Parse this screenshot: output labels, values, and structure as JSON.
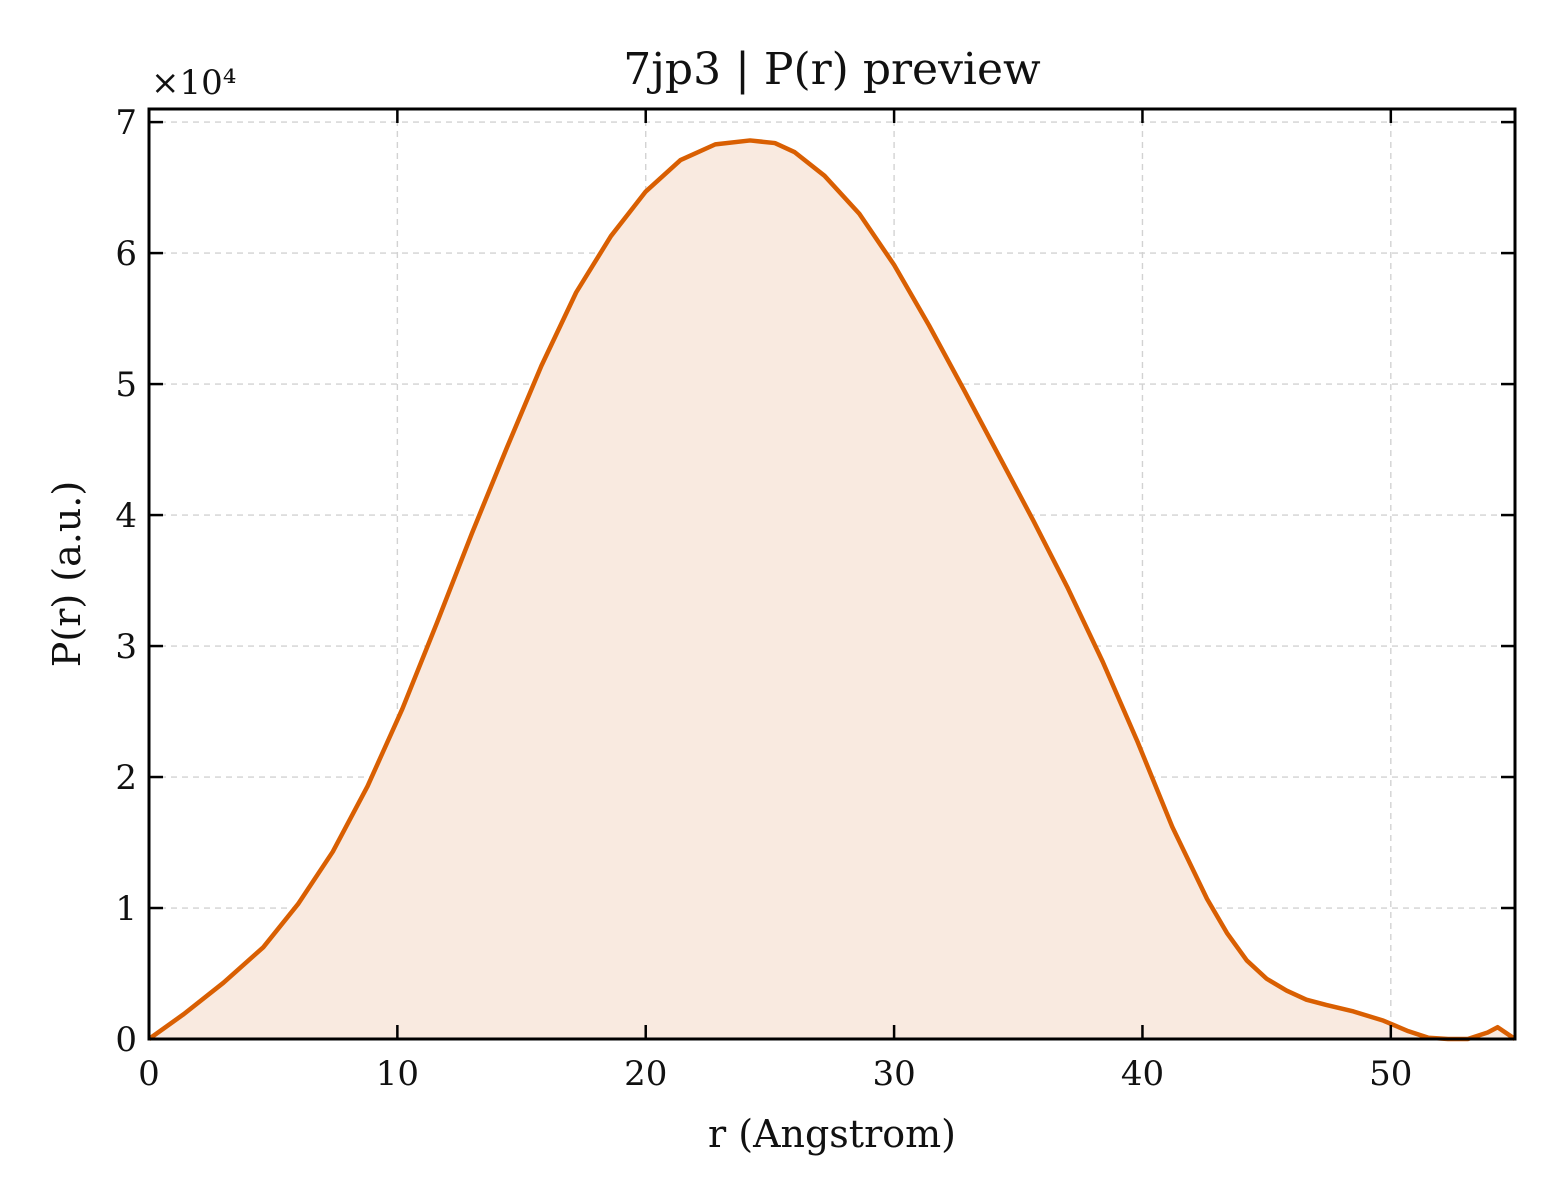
{
  "chart_data": {
    "type": "area",
    "title": "7jp3 | P(r) preview",
    "xlabel": "r (Angstrom)",
    "ylabel": "P(r) (a.u.)",
    "y_multiplier_label": "×10⁴",
    "xlim": [
      0,
      55
    ],
    "ylim": [
      0,
      7.1
    ],
    "y_unit_scale": 10000,
    "xticks": [
      0,
      10,
      20,
      30,
      40,
      50
    ],
    "yticks": [
      0,
      1,
      2,
      3,
      4,
      5,
      6,
      7
    ],
    "xtick_labels": [
      "0",
      "10",
      "20",
      "30",
      "40",
      "50"
    ],
    "ytick_labels": [
      "0",
      "1",
      "2",
      "3",
      "4",
      "5",
      "6",
      "7"
    ],
    "grid": true,
    "line_color": "#d95f02",
    "fill_color": "#f9eae0",
    "series": [
      {
        "x": [
          0,
          1.4,
          3,
          4.6,
          6,
          7.4,
          8.8,
          10.2,
          11.6,
          13,
          14.4,
          15.8,
          17.2,
          18.6,
          20,
          21.4,
          22.8,
          24.2,
          25.2,
          26,
          27.2,
          28.6,
          30,
          31.4,
          32.8,
          34.2,
          35.6,
          37,
          38.4,
          39.8,
          41.2,
          42.6,
          43.4,
          44.2,
          45,
          45.8,
          46.6,
          47.4,
          48.5,
          49.7,
          50.7,
          51.5,
          52.3,
          53.1,
          53.9,
          54.3,
          55
        ],
        "y": [
          0,
          0.19,
          0.43,
          0.7,
          1.03,
          1.43,
          1.93,
          2.52,
          3.18,
          3.86,
          4.51,
          5.14,
          5.7,
          6.13,
          6.47,
          6.71,
          6.83,
          6.86,
          6.84,
          6.77,
          6.59,
          6.3,
          5.91,
          5.45,
          4.96,
          4.46,
          3.96,
          3.44,
          2.88,
          2.27,
          1.62,
          1.07,
          0.81,
          0.6,
          0.46,
          0.37,
          0.3,
          0.26,
          0.21,
          0.14,
          0.06,
          0.01,
          0,
          0,
          0.05,
          0.09,
          0
        ]
      }
    ]
  }
}
